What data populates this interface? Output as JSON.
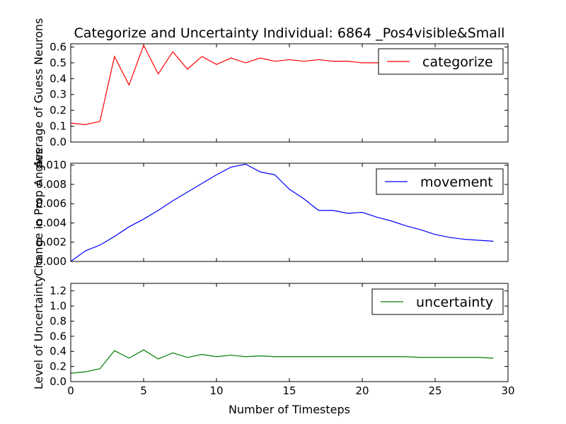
{
  "chart_data": [
    {
      "type": "line",
      "title": "Categorize and Uncertainty Individual: 6864 _Pos4visible&Small",
      "ylabel": "Average of Guess Neurons",
      "xlabel": "",
      "xlim": [
        0,
        30
      ],
      "ylim": [
        0,
        0.62
      ],
      "xticks": [],
      "yticks": [
        "0.0",
        "0.1",
        "0.2",
        "0.3",
        "0.4",
        "0.5",
        "0.6"
      ],
      "grid": false,
      "legend_position": "top-right",
      "series": [
        {
          "name": "categorize",
          "color": "#ff0000",
          "x": [
            0,
            1,
            2,
            3,
            4,
            5,
            6,
            7,
            8,
            9,
            10,
            11,
            12,
            13,
            14,
            15,
            16,
            17,
            18,
            19,
            20,
            21,
            22,
            23,
            24,
            25,
            26,
            27,
            28,
            29
          ],
          "values": [
            0.12,
            0.11,
            0.13,
            0.54,
            0.36,
            0.61,
            0.43,
            0.57,
            0.46,
            0.54,
            0.49,
            0.53,
            0.5,
            0.53,
            0.51,
            0.52,
            0.51,
            0.52,
            0.51,
            0.51,
            0.5,
            0.5,
            0.5,
            0.5,
            0.5,
            0.5,
            0.5,
            0.5,
            0.5,
            0.5
          ]
        }
      ]
    },
    {
      "type": "line",
      "title": "",
      "ylabel": "Change in Prop Angles",
      "xlabel": "",
      "xlim": [
        0,
        30
      ],
      "ylim": [
        0,
        0.0102
      ],
      "xticks": [],
      "yticks": [
        "0.000",
        "0.002",
        "0.004",
        "0.006",
        "0.008",
        "0.010"
      ],
      "grid": false,
      "legend_position": "top-right",
      "series": [
        {
          "name": "movement",
          "color": "#0000ff",
          "x": [
            0,
            1,
            2,
            3,
            4,
            5,
            6,
            7,
            8,
            9,
            10,
            11,
            12,
            13,
            14,
            15,
            16,
            17,
            18,
            19,
            20,
            21,
            22,
            23,
            24,
            25,
            26,
            27,
            28,
            29
          ],
          "values": [
            0.0,
            0.0011,
            0.0017,
            0.0026,
            0.0036,
            0.0044,
            0.0053,
            0.0063,
            0.0072,
            0.0081,
            0.009,
            0.0098,
            0.0101,
            0.0093,
            0.009,
            0.0075,
            0.0065,
            0.0053,
            0.0053,
            0.005,
            0.0051,
            0.0046,
            0.0042,
            0.0037,
            0.0033,
            0.0028,
            0.0025,
            0.0023,
            0.0022,
            0.0021
          ]
        }
      ]
    },
    {
      "type": "line",
      "title": "",
      "ylabel": "Level of Uncertainty",
      "xlabel": "Number of Timesteps",
      "xlim": [
        0,
        30
      ],
      "ylim": [
        0,
        1.3
      ],
      "xticks": [
        "0",
        "5",
        "10",
        "15",
        "20",
        "25",
        "30"
      ],
      "yticks": [
        "0.0",
        "0.2",
        "0.4",
        "0.6",
        "0.8",
        "1.0",
        "1.2"
      ],
      "grid": false,
      "legend_position": "top-right",
      "series": [
        {
          "name": "uncertainty",
          "color": "#008000",
          "x": [
            0,
            1,
            2,
            3,
            4,
            5,
            6,
            7,
            8,
            9,
            10,
            11,
            12,
            13,
            14,
            15,
            16,
            17,
            18,
            19,
            20,
            21,
            22,
            23,
            24,
            25,
            26,
            27,
            28,
            29
          ],
          "values": [
            0.11,
            0.13,
            0.17,
            0.41,
            0.31,
            0.42,
            0.3,
            0.38,
            0.32,
            0.36,
            0.33,
            0.35,
            0.33,
            0.34,
            0.33,
            0.33,
            0.33,
            0.33,
            0.33,
            0.33,
            0.33,
            0.33,
            0.33,
            0.33,
            0.32,
            0.32,
            0.32,
            0.32,
            0.32,
            0.31
          ]
        }
      ]
    }
  ]
}
